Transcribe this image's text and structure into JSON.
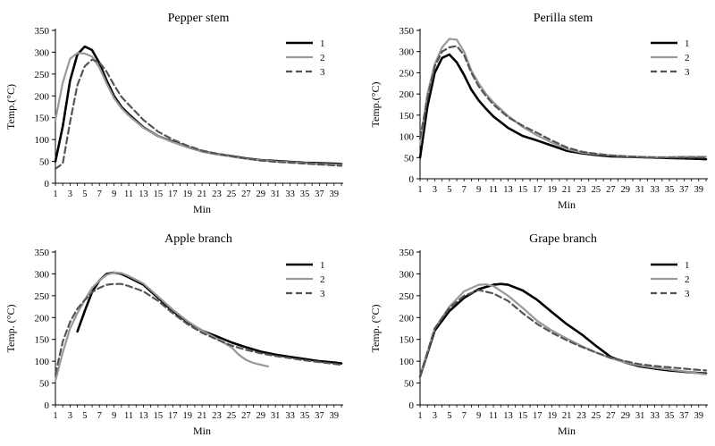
{
  "figure": {
    "legend_labels": [
      "1",
      "2",
      "3"
    ],
    "series_styles": [
      {
        "color": "#000000",
        "dash": "solid"
      },
      {
        "color": "#999999",
        "dash": "solid"
      },
      {
        "color": "#555555",
        "dash": "dashed"
      }
    ]
  },
  "chart_data": [
    {
      "type": "line",
      "title": "Pepper stem",
      "xlabel": "Min",
      "ylabel": "Temp.(°C)",
      "ylim": [
        0,
        350
      ],
      "yticks": [
        0,
        50,
        100,
        150,
        200,
        250,
        300,
        350
      ],
      "xlim": [
        1,
        40
      ],
      "xticks": [
        1,
        3,
        5,
        7,
        9,
        11,
        13,
        15,
        17,
        19,
        21,
        23,
        25,
        27,
        29,
        31,
        33,
        35,
        37,
        39
      ],
      "grid": false,
      "legend": "top-right",
      "series": [
        {
          "name": "1",
          "x": [
            1,
            2,
            3,
            4,
            5,
            6,
            7,
            8,
            9,
            10,
            11,
            13,
            15,
            17,
            19,
            21,
            23,
            25,
            27,
            29,
            31,
            33,
            35,
            37,
            39,
            40
          ],
          "y": [
            50,
            130,
            235,
            295,
            313,
            305,
            275,
            235,
            200,
            175,
            158,
            128,
            108,
            95,
            83,
            73,
            67,
            62,
            57,
            53,
            51,
            49,
            47,
            46,
            45,
            44
          ]
        },
        {
          "name": "2",
          "x": [
            1,
            2,
            3,
            4,
            5,
            6,
            7,
            8,
            9,
            10,
            11,
            13,
            15,
            17,
            19,
            21,
            23,
            25,
            27,
            29,
            31,
            33,
            35,
            37,
            39,
            40
          ],
          "y": [
            145,
            230,
            285,
            298,
            297,
            290,
            265,
            228,
            195,
            172,
            155,
            127,
            108,
            94,
            83,
            73,
            67,
            61,
            56,
            53,
            50,
            48,
            46,
            44,
            43,
            42
          ]
        },
        {
          "name": "3",
          "x": [
            1,
            2,
            3,
            4,
            5,
            6,
            7,
            8,
            9,
            10,
            11,
            13,
            15,
            17,
            19,
            21,
            23,
            25,
            27,
            29,
            31,
            33,
            35,
            37,
            39,
            40
          ],
          "y": [
            33,
            45,
            140,
            225,
            268,
            283,
            277,
            255,
            225,
            198,
            180,
            145,
            118,
            100,
            86,
            75,
            68,
            62,
            57,
            52,
            49,
            47,
            45,
            43,
            41,
            40
          ]
        }
      ]
    },
    {
      "type": "line",
      "title": "Perilla stem",
      "xlabel": "Min",
      "ylabel": "Temp.(°C)",
      "ylim": [
        0,
        350
      ],
      "yticks": [
        0,
        50,
        100,
        150,
        200,
        250,
        300,
        350
      ],
      "xlim": [
        1,
        40
      ],
      "xticks": [
        1,
        3,
        5,
        7,
        9,
        11,
        13,
        15,
        17,
        19,
        21,
        23,
        25,
        27,
        29,
        31,
        33,
        35,
        37,
        39
      ],
      "grid": false,
      "legend": "top-right",
      "series": [
        {
          "name": "1",
          "x": [
            1,
            2,
            3,
            4,
            5,
            6,
            7,
            8,
            9,
            10,
            11,
            13,
            15,
            17,
            19,
            21,
            23,
            25,
            27,
            29,
            31,
            33,
            35,
            37,
            39,
            40
          ],
          "y": [
            50,
            170,
            250,
            285,
            293,
            275,
            245,
            210,
            185,
            165,
            147,
            120,
            101,
            90,
            78,
            66,
            60,
            56,
            53,
            52,
            51,
            50,
            49,
            48,
            47,
            46
          ]
        },
        {
          "name": "2",
          "x": [
            1,
            2,
            3,
            4,
            5,
            6,
            7,
            8,
            9,
            10,
            11,
            13,
            15,
            17,
            19,
            21,
            23,
            25,
            27,
            29,
            31,
            33,
            35,
            37,
            39,
            40
          ],
          "y": [
            80,
            200,
            270,
            310,
            330,
            328,
            300,
            255,
            225,
            200,
            180,
            148,
            122,
            102,
            85,
            70,
            62,
            58,
            55,
            53,
            52,
            51,
            51,
            52,
            52,
            52
          ]
        },
        {
          "name": "3",
          "x": [
            1,
            2,
            3,
            4,
            5,
            6,
            7,
            8,
            9,
            10,
            11,
            13,
            15,
            17,
            19,
            21,
            23,
            25,
            27,
            29,
            31,
            33,
            35,
            37,
            39,
            40
          ],
          "y": [
            95,
            190,
            265,
            300,
            310,
            313,
            292,
            250,
            218,
            195,
            175,
            145,
            125,
            108,
            90,
            74,
            64,
            59,
            55,
            53,
            51,
            50,
            50,
            50,
            50,
            50
          ]
        }
      ]
    },
    {
      "type": "line",
      "title": "Apple branch",
      "xlabel": "Min",
      "ylabel": "Temp. (°C)",
      "ylim": [
        0,
        350
      ],
      "yticks": [
        0,
        50,
        100,
        150,
        200,
        250,
        300,
        350
      ],
      "xlim": [
        1,
        40
      ],
      "xticks": [
        1,
        3,
        5,
        7,
        9,
        11,
        13,
        15,
        17,
        19,
        21,
        23,
        25,
        27,
        29,
        31,
        33,
        35,
        37,
        39
      ],
      "grid": false,
      "legend": "top-right",
      "series": [
        {
          "name": "1",
          "x": [
            4,
            5,
            6,
            7,
            8,
            9,
            10,
            11,
            13,
            15,
            17,
            19,
            21,
            23,
            25,
            27,
            29,
            31,
            33,
            35,
            37,
            39,
            40
          ],
          "y": [
            168,
            215,
            258,
            285,
            300,
            303,
            300,
            292,
            275,
            245,
            215,
            190,
            170,
            157,
            143,
            132,
            122,
            115,
            110,
            105,
            100,
            97,
            95
          ]
        },
        {
          "name": "2",
          "x": [
            1,
            2,
            3,
            4,
            5,
            6,
            7,
            8,
            9,
            10,
            11,
            13,
            15,
            17,
            19,
            21,
            23,
            25,
            26,
            27,
            28,
            29,
            30
          ],
          "y": [
            55,
            120,
            175,
            210,
            240,
            268,
            285,
            298,
            303,
            302,
            295,
            278,
            248,
            218,
            192,
            170,
            152,
            132,
            115,
            103,
            96,
            92,
            88
          ]
        },
        {
          "name": "3",
          "x": [
            1,
            2,
            3,
            4,
            5,
            6,
            7,
            8,
            9,
            10,
            11,
            13,
            15,
            17,
            19,
            21,
            23,
            25,
            27,
            29,
            31,
            33,
            35,
            37,
            39,
            40
          ],
          "y": [
            70,
            145,
            190,
            220,
            240,
            258,
            268,
            275,
            277,
            277,
            272,
            260,
            238,
            210,
            185,
            165,
            150,
            136,
            126,
            118,
            112,
            107,
            102,
            98,
            94,
            92
          ]
        }
      ]
    },
    {
      "type": "line",
      "title": "Grape branch",
      "xlabel": "Min",
      "ylabel": "Temp. (°C)",
      "ylim": [
        0,
        350
      ],
      "yticks": [
        0,
        50,
        100,
        150,
        200,
        250,
        300,
        350
      ],
      "xlim": [
        1,
        40
      ],
      "xticks": [
        1,
        3,
        5,
        7,
        9,
        11,
        13,
        15,
        17,
        19,
        21,
        23,
        25,
        27,
        29,
        31,
        33,
        35,
        37,
        39
      ],
      "grid": false,
      "legend": "top-right",
      "series": [
        {
          "name": "1",
          "x": [
            1,
            3,
            5,
            7,
            9,
            11,
            12,
            13,
            15,
            17,
            19,
            21,
            23,
            25,
            27,
            29,
            31,
            33,
            35,
            37,
            39,
            40
          ],
          "y": [
            65,
            170,
            215,
            245,
            265,
            275,
            277,
            275,
            262,
            240,
            212,
            185,
            162,
            135,
            110,
            97,
            88,
            83,
            79,
            76,
            73,
            72
          ]
        },
        {
          "name": "2",
          "x": [
            1,
            3,
            5,
            7,
            9,
            10,
            11,
            13,
            15,
            17,
            19,
            21,
            23,
            25,
            27,
            29,
            31,
            33,
            35,
            37,
            39,
            40
          ],
          "y": [
            65,
            175,
            225,
            260,
            275,
            276,
            272,
            250,
            222,
            192,
            170,
            152,
            135,
            120,
            107,
            97,
            90,
            85,
            81,
            77,
            72,
            70
          ]
        },
        {
          "name": "3",
          "x": [
            1,
            3,
            5,
            7,
            9,
            11,
            13,
            15,
            17,
            19,
            21,
            23,
            25,
            27,
            29,
            31,
            33,
            35,
            37,
            39,
            40
          ],
          "y": [
            65,
            175,
            222,
            250,
            263,
            255,
            238,
            210,
            185,
            165,
            148,
            133,
            120,
            108,
            100,
            93,
            89,
            86,
            83,
            80,
            79
          ]
        }
      ]
    }
  ]
}
